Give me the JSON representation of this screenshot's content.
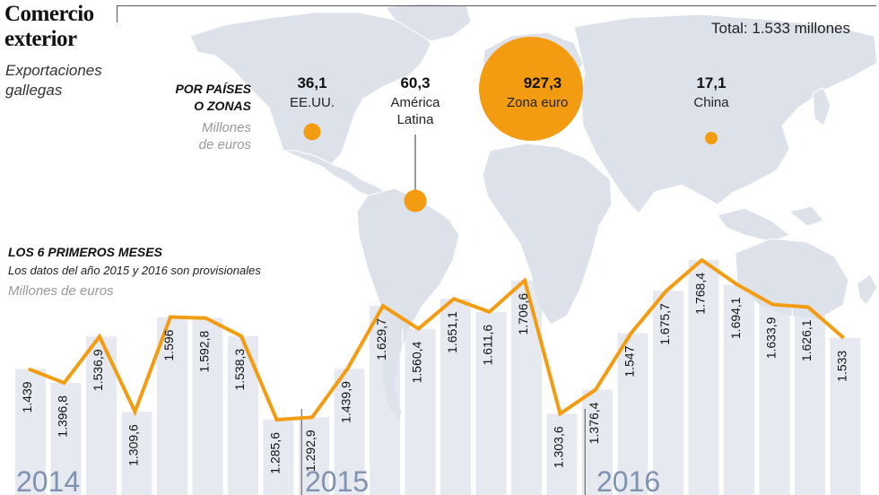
{
  "header": {
    "title_line1": "Comercio",
    "title_line2": "exterior",
    "subtitle_line1": "Exportaciones",
    "subtitle_line2": "gallegas",
    "total": "Total: 1.533 millones"
  },
  "map": {
    "heading_line1": "POR PAÍSES",
    "heading_line2": "O ZONAS",
    "unit_line1": "Millones",
    "unit_line2": "de euros",
    "bubble_color": "#f39c12",
    "land_color": "#dde2ea",
    "regions": [
      {
        "value": "36,1",
        "name_line1": "EE.UU.",
        "name_line2": ""
      },
      {
        "value": "60,3",
        "name_line1": "América",
        "name_line2": "Latina"
      },
      {
        "value": "927,3",
        "name_line1": "Zona euro",
        "name_line2": ""
      },
      {
        "value": "17,1",
        "name_line1": "China",
        "name_line2": ""
      }
    ]
  },
  "section": {
    "title": "LOS 6 PRIMEROS MESES",
    "note": "Los datos del año 2015 y 2016 son provisionales",
    "unit": "Millones de euros"
  },
  "chart_data": {
    "type": "line",
    "line_color": "#f39c12",
    "column_color": "#dde2ea",
    "ylim": [
      1200,
      1800
    ],
    "years": [
      "2014",
      "2015",
      "2016"
    ],
    "series": [
      {
        "values": [
          1439,
          1396.8,
          1536.9,
          1309.6,
          1596,
          1592.8,
          1538.3,
          1285.6,
          1292.9,
          1439.9,
          1629.7,
          1560.4,
          1651.1,
          1611.6,
          1706.6,
          1303.6,
          1376.4,
          1547,
          1675.7,
          1768.4,
          1694.1,
          1633.9,
          1626.1,
          1533
        ],
        "labels": [
          "1.439",
          "1.396,8",
          "1.536,9",
          "1.309,6",
          "1.596",
          "1.592,8",
          "1.538,3",
          "1.285,6",
          "1.292,9",
          "1.439,9",
          "1.629,7",
          "1.560,4",
          "1.651,1",
          "1.611,6",
          "1.706,6",
          "1.303,6",
          "1.376,4",
          "1.547",
          "1.675,7",
          "1.768,4",
          "1.694,1",
          "1.633,9",
          "1.626,1",
          "1.533"
        ]
      }
    ]
  }
}
